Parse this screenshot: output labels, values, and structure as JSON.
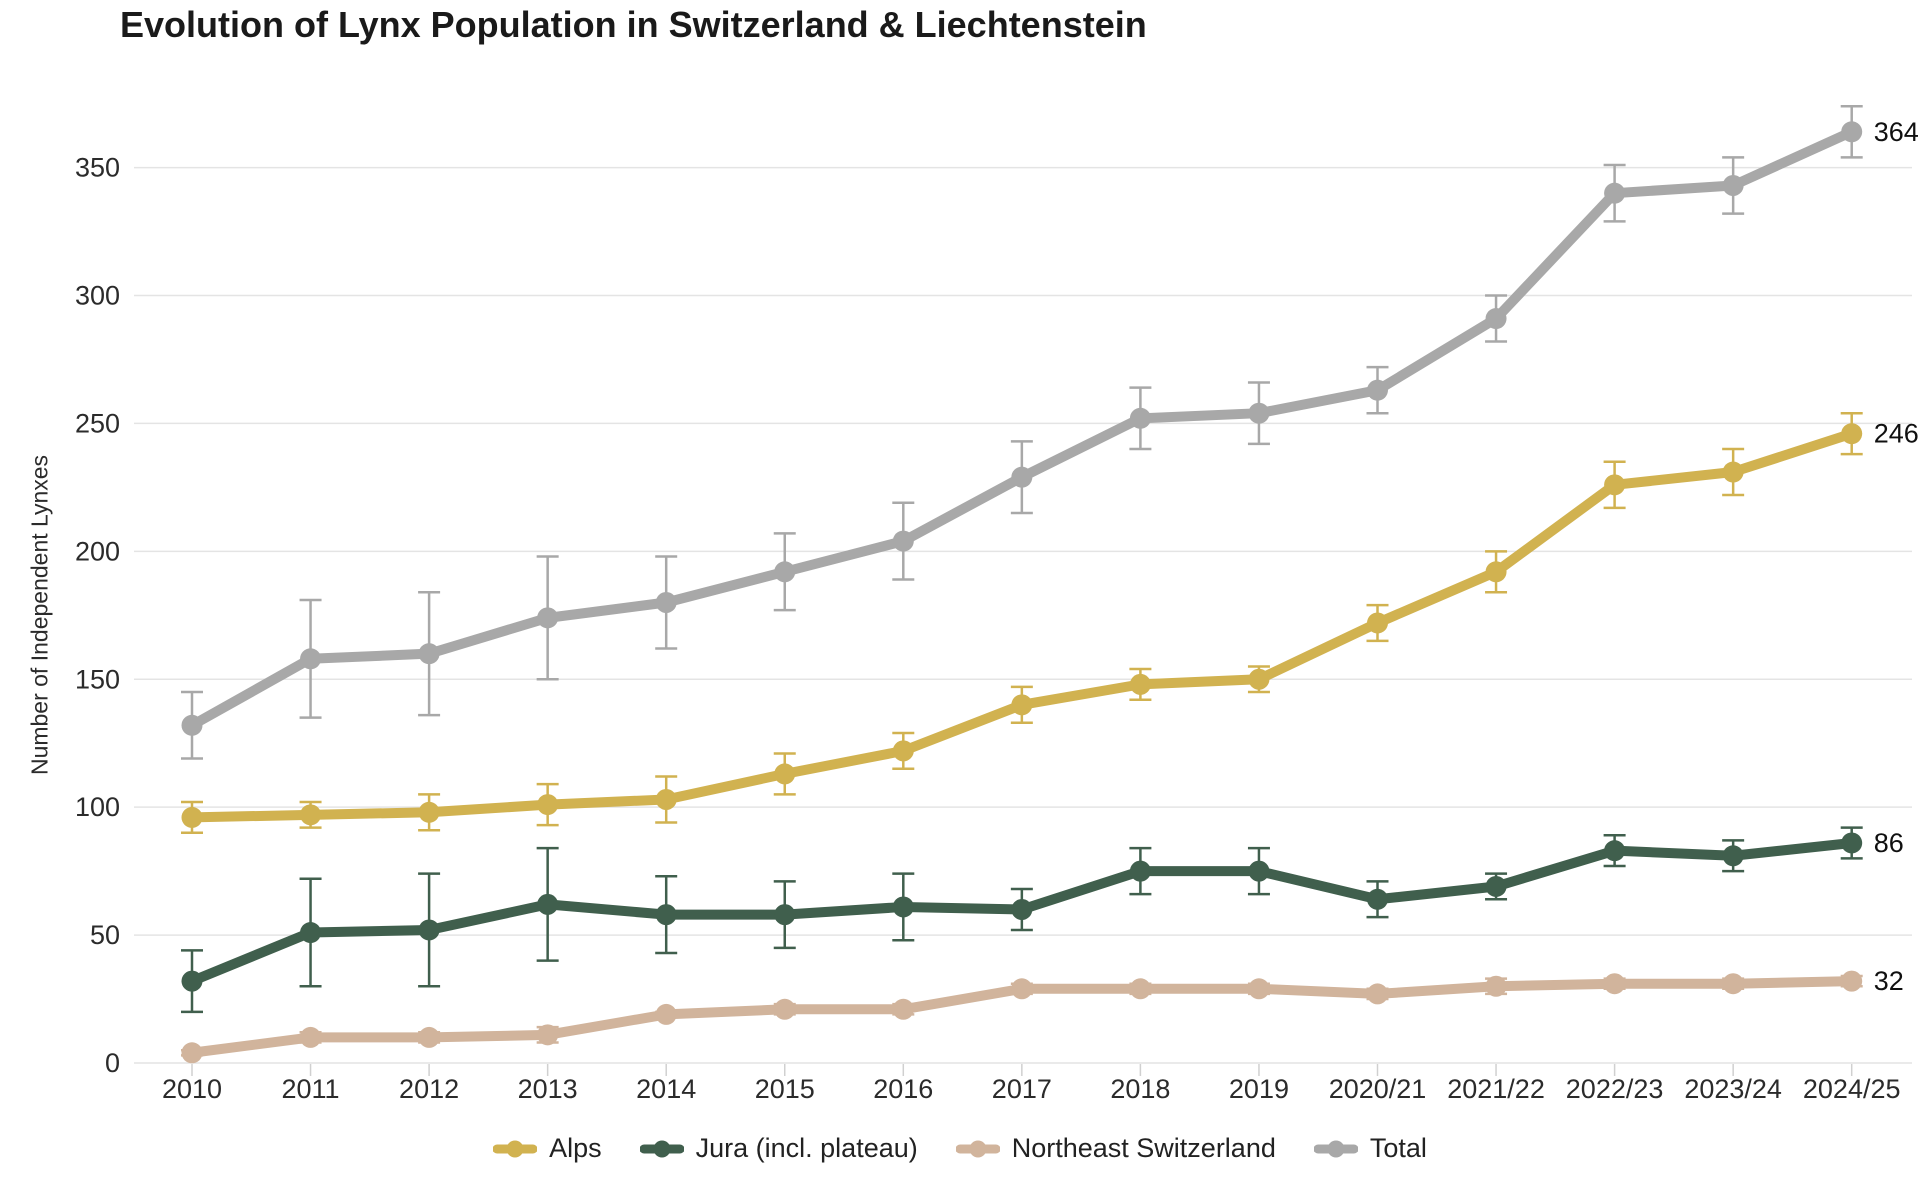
{
  "chart_data": {
    "type": "line",
    "title": "Evolution of Lynx Population in Switzerland & Liechtenstein",
    "ylabel": "Number of Independent Lynxes",
    "xlabel": "",
    "categories": [
      "2010",
      "2011",
      "2012",
      "2013",
      "2014",
      "2015",
      "2016",
      "2017",
      "2018",
      "2019",
      "2020/21",
      "2021/22",
      "2022/23",
      "2023/24",
      "2024/25"
    ],
    "y_ticks": [
      0,
      50,
      100,
      150,
      200,
      250,
      300,
      350
    ],
    "ylim": [
      0,
      380
    ],
    "grid": "horizontal",
    "legend_position": "bottom-center",
    "error_bars": true,
    "series": [
      {
        "name": "Alps",
        "color": "#d1b250",
        "values": [
          96,
          97,
          98,
          101,
          103,
          113,
          122,
          140,
          148,
          150,
          172,
          192,
          226,
          231,
          246
        ],
        "errors": [
          6,
          5,
          7,
          8,
          9,
          8,
          7,
          7,
          6,
          5,
          7,
          8,
          9,
          9,
          8
        ],
        "end_label": "246"
      },
      {
        "name": "Jura (incl. plateau)",
        "color": "#405f4d",
        "values": [
          32,
          51,
          52,
          62,
          58,
          58,
          61,
          60,
          75,
          75,
          64,
          69,
          83,
          81,
          86
        ],
        "errors": [
          12,
          21,
          22,
          22,
          15,
          13,
          13,
          8,
          9,
          9,
          7,
          5,
          6,
          6,
          6
        ],
        "end_label": "86"
      },
      {
        "name": "Northeast Switzerland",
        "color": "#d1b49c",
        "values": [
          4,
          10,
          10,
          11,
          19,
          21,
          21,
          29,
          29,
          29,
          27,
          30,
          31,
          31,
          32
        ],
        "errors": [
          1,
          2,
          2,
          3,
          1,
          2,
          2,
          2,
          2,
          2,
          2,
          3,
          2,
          2,
          2
        ],
        "end_label": "32"
      },
      {
        "name": "Total",
        "color": "#a8a8a8",
        "values": [
          132,
          158,
          160,
          174,
          180,
          192,
          204,
          229,
          252,
          254,
          263,
          291,
          340,
          343,
          364
        ],
        "errors": [
          13,
          23,
          24,
          24,
          18,
          15,
          15,
          14,
          12,
          12,
          9,
          9,
          11,
          11,
          10
        ],
        "end_label": "364"
      }
    ]
  },
  "appearance": {
    "background": "#ffffff",
    "grid_color": "#e4e4e4",
    "axis_tick_color": "#d0d0d0",
    "tick_text_color": "#2b2b2b",
    "title_color": "#1a1a1a",
    "end_label_color": "#101010"
  }
}
